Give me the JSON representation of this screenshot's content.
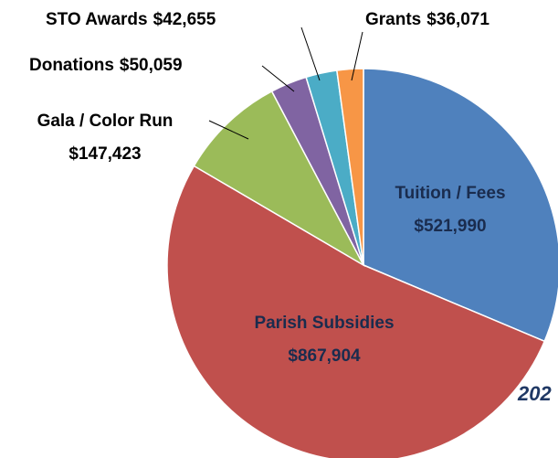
{
  "chart_data": {
    "type": "pie",
    "categories": [
      "Tuition / Fees",
      "Parish Subsidies",
      "Gala / Color Run",
      "Donations",
      "STO Awards",
      "Grants"
    ],
    "values": [
      521990,
      867904,
      147423,
      50059,
      42655,
      36071
    ],
    "value_labels": [
      "$521,990",
      "$867,904",
      "$147,423",
      "$50,059",
      "$42,655",
      "$36,071"
    ],
    "colors": [
      "#4f81bd",
      "#c0504d",
      "#9bbb59",
      "#8064a2",
      "#4bacc6",
      "#f79646"
    ],
    "annotation": "202"
  }
}
